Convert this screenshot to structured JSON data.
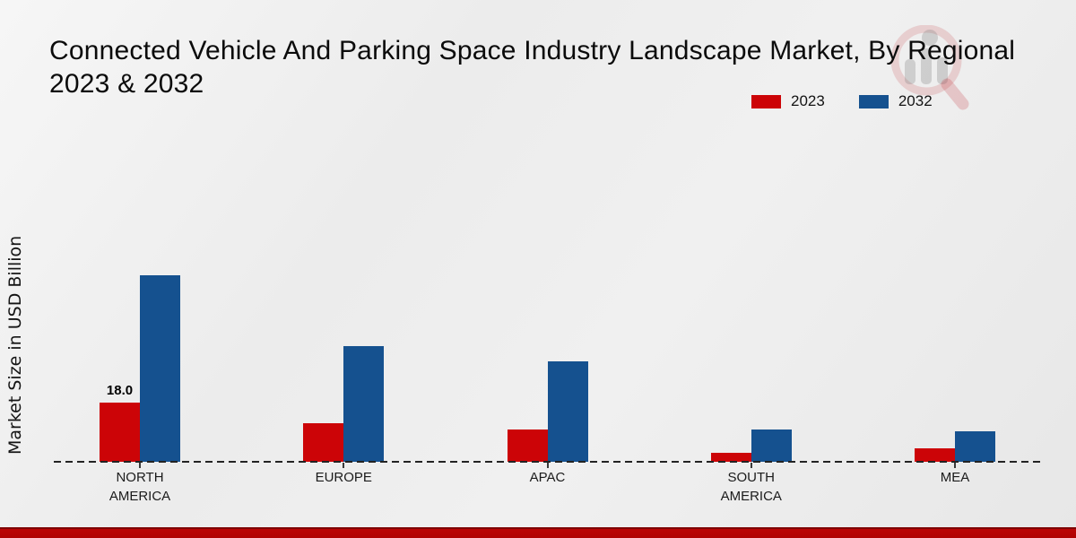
{
  "header": {
    "title_line1": "Connected Vehicle And Parking Space Industry Landscape Market, By Regional",
    "title_line2": "2023 & 2032"
  },
  "chart_data": {
    "type": "bar",
    "title": "Connected Vehicle And Parking Space Industry Landscape Market, By Regional 2023 & 2032",
    "xlabel": "",
    "ylabel": "Market Size in USD Billion",
    "categories": [
      "NORTH AMERICA",
      "EUROPE",
      "APAC",
      "SOUTH AMERICA",
      "MEA"
    ],
    "series": [
      {
        "name": "2023",
        "color": "#cc0407",
        "values": [
          18.0,
          11.8,
          10.0,
          2.8,
          4.1
        ]
      },
      {
        "name": "2032",
        "color": "#15518f",
        "values": [
          57.0,
          35.4,
          30.6,
          9.8,
          9.4
        ]
      }
    ],
    "point_labels": [
      {
        "series_index": 0,
        "category_index": 0,
        "text": "18.0"
      }
    ],
    "ylim": [
      0,
      62
    ],
    "grid": false,
    "value_axis_labels_visible": false,
    "legend_position": "top-right",
    "baseline_style": "dashed"
  },
  "theme": {
    "bottom_band_color": "#bb0404",
    "axis_line_color": "#232323",
    "text_color": "#111111",
    "watermark_lens_color": "#c0242c",
    "watermark_bars_color": "#8a8a8a"
  }
}
